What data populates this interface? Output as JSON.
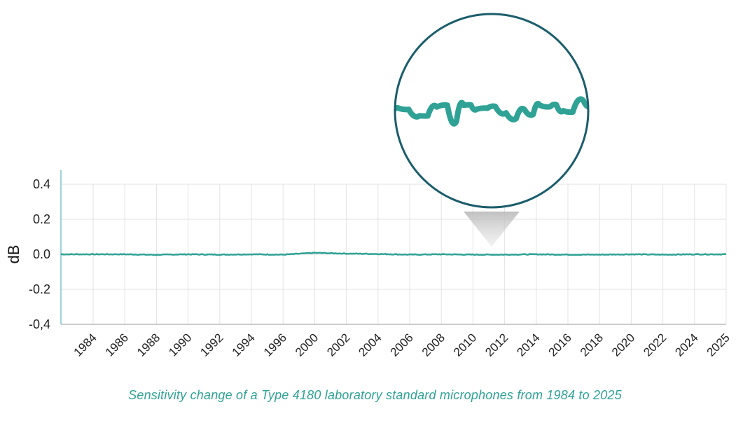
{
  "chart_data": {
    "type": "line",
    "title": "",
    "ylabel": "dB",
    "xlabel": "",
    "ylim": [
      -0.4,
      0.4
    ],
    "y_ticks": [
      "0.4",
      "0.2",
      "0.0",
      "-0.2",
      "-0,4"
    ],
    "y_tick_values": [
      0.4,
      0.2,
      0.0,
      -0.2,
      -0.4
    ],
    "x_ticks": [
      "1984",
      "1986",
      "1988",
      "1990",
      "1992",
      "1994",
      "1996",
      "2000",
      "2002",
      "2004",
      "2006",
      "2008",
      "2010",
      "2012",
      "2014",
      "2016",
      "2018",
      "2020",
      "2022",
      "2024",
      "2025"
    ],
    "grid": true,
    "series": [
      {
        "color": "#2fa295",
        "x": [
          "1984",
          "1986",
          "1988",
          "1990",
          "1992",
          "1994",
          "1996",
          "2000",
          "2002",
          "2004",
          "2006",
          "2008",
          "2010",
          "2012",
          "2014",
          "2016",
          "2018",
          "2020",
          "2022",
          "2024",
          "2025"
        ],
        "values": [
          0.0,
          0.0,
          -0.003,
          0.0,
          -0.002,
          0.0,
          -0.002,
          0.008,
          0.004,
          0.002,
          -0.002,
          0.0,
          -0.002,
          -0.002,
          0.0,
          -0.002,
          -0.002,
          0.0,
          -0.002,
          0.0,
          0.0
        ]
      }
    ],
    "inset": "magnified view of the line",
    "colors": {
      "line": "#2fa295",
      "circle": "#1c5d6b",
      "axis": "#7cc6cf",
      "grid": "#e3e3e3"
    }
  },
  "caption": "Sensitivity change of a Type 4180 laboratory standard microphones from 1984 to 2025"
}
